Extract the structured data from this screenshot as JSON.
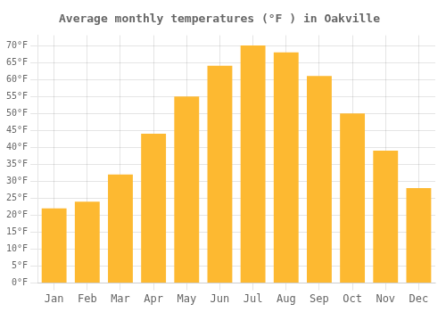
{
  "chart_data": {
    "type": "bar",
    "title": "Average monthly temperatures (°F ) in Oakville",
    "categories": [
      "Jan",
      "Feb",
      "Mar",
      "Apr",
      "May",
      "Jun",
      "Jul",
      "Aug",
      "Sep",
      "Oct",
      "Nov",
      "Dec"
    ],
    "values": [
      22,
      24,
      32,
      44,
      55,
      64,
      70,
      68,
      61,
      50,
      39,
      28
    ],
    "color": "#FDB931",
    "ylim": [
      0,
      73
    ],
    "yticks": [
      {
        "value": 0,
        "label": "0°F"
      },
      {
        "value": 5,
        "label": "5°F"
      },
      {
        "value": 10,
        "label": "10°F"
      },
      {
        "value": 15,
        "label": "15°F"
      },
      {
        "value": 20,
        "label": "20°F"
      },
      {
        "value": 25,
        "label": "25°F"
      },
      {
        "value": 30,
        "label": "30°F"
      },
      {
        "value": 35,
        "label": "35°F"
      },
      {
        "value": 40,
        "label": "40°F"
      },
      {
        "value": 45,
        "label": "45°F"
      },
      {
        "value": 50,
        "label": "50°F"
      },
      {
        "value": 55,
        "label": "55°F"
      },
      {
        "value": 60,
        "label": "60°F"
      },
      {
        "value": 65,
        "label": "65°F"
      },
      {
        "value": 70,
        "label": "70°F"
      }
    ],
    "grid": true
  }
}
